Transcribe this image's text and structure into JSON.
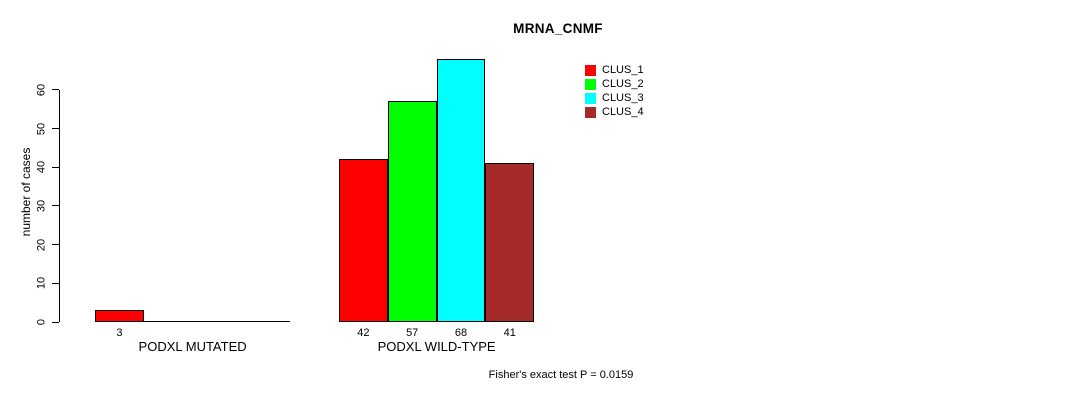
{
  "chart_data": {
    "type": "bar",
    "title": "MRNA_CNMF",
    "ylabel": "number of cases",
    "xlabel": "",
    "axis_range": [
      0,
      60
    ],
    "yticks": [
      0,
      10,
      20,
      30,
      40,
      50,
      60
    ],
    "grid": false,
    "legend_position": "top-right",
    "categories": [
      "PODXL MUTATED",
      "PODXL WILD-TYPE"
    ],
    "series": [
      {
        "name": "CLUS_1",
        "color": "#ff0000",
        "values": [
          3,
          42
        ]
      },
      {
        "name": "CLUS_2",
        "color": "#00ff00",
        "values": [
          0,
          57
        ]
      },
      {
        "name": "CLUS_3",
        "color": "#00ffff",
        "values": [
          0,
          68
        ]
      },
      {
        "name": "CLUS_4",
        "color": "#a52a2a",
        "values": [
          0,
          41
        ]
      }
    ],
    "bar_value_labels": [
      [
        3
      ],
      [
        42,
        57,
        68,
        41
      ]
    ],
    "annotation": "Fisher's exact test P = 0.0159"
  }
}
